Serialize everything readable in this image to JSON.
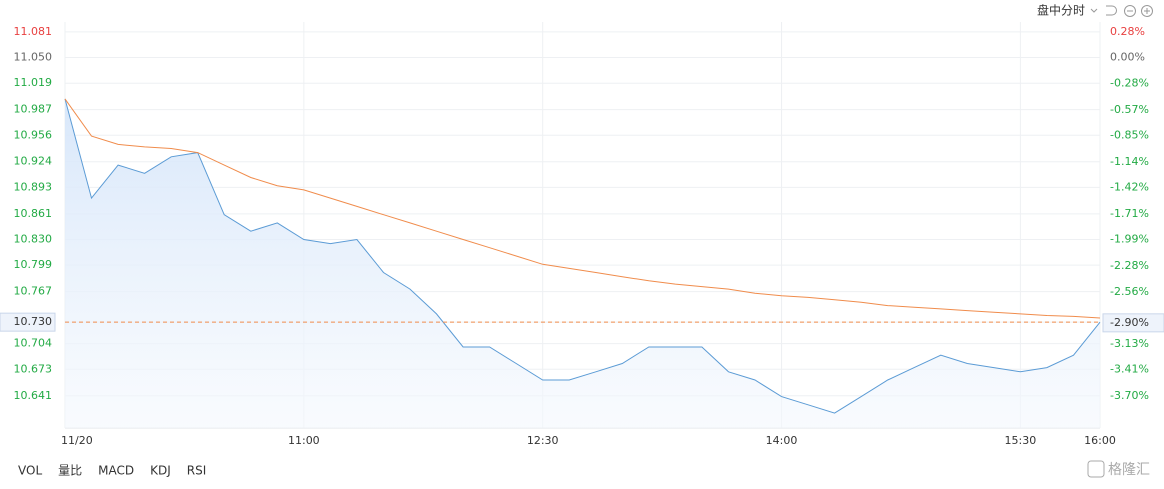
{
  "chart_data": {
    "type": "line",
    "x": [
      "09:30",
      "09:40",
      "09:50",
      "10:00",
      "10:10",
      "10:20",
      "10:30",
      "10:40",
      "10:50",
      "11:00",
      "11:10",
      "11:20",
      "11:30",
      "11:40",
      "11:50",
      "12:00",
      "12:10",
      "12:20",
      "12:30",
      "12:40",
      "12:50",
      "13:00",
      "13:10",
      "13:20",
      "13:30",
      "13:40",
      "13:50",
      "14:00",
      "14:10",
      "14:20",
      "14:30",
      "14:40",
      "14:50",
      "15:00",
      "15:10",
      "15:20",
      "15:30",
      "15:40",
      "15:50",
      "16:00"
    ],
    "series": [
      {
        "name": "price",
        "color": "#5b9bd5",
        "values": [
          11.0,
          10.88,
          10.92,
          10.91,
          10.93,
          10.935,
          10.86,
          10.84,
          10.85,
          10.83,
          10.825,
          10.83,
          10.79,
          10.77,
          10.74,
          10.7,
          10.7,
          10.68,
          10.66,
          10.66,
          10.67,
          10.68,
          10.7,
          10.7,
          10.7,
          10.67,
          10.66,
          10.64,
          10.63,
          10.62,
          10.64,
          10.66,
          10.675,
          10.69,
          10.68,
          10.675,
          10.67,
          10.675,
          10.69,
          10.73
        ]
      },
      {
        "name": "average",
        "color": "#f08c4c",
        "values": [
          11.0,
          10.955,
          10.945,
          10.942,
          10.94,
          10.935,
          10.92,
          10.905,
          10.895,
          10.89,
          10.88,
          10.87,
          10.86,
          10.85,
          10.84,
          10.83,
          10.82,
          10.81,
          10.8,
          10.795,
          10.79,
          10.785,
          10.78,
          10.776,
          10.773,
          10.77,
          10.765,
          10.762,
          10.76,
          10.757,
          10.754,
          10.75,
          10.748,
          10.746,
          10.744,
          10.742,
          10.74,
          10.738,
          10.737,
          10.735
        ]
      }
    ],
    "xlim": [
      "09:30",
      "16:00"
    ],
    "xticks": [
      {
        "value": "09:30",
        "label": "11/20"
      },
      "11:00",
      "12:30",
      "14:00",
      "15:30",
      "16:00"
    ],
    "ylim": [
      10.602,
      11.093
    ],
    "yticks": [
      11.081,
      {
        "value": 11.05,
        "label": "11.050"
      },
      11.019,
      10.987,
      10.956,
      10.924,
      10.893,
      10.861,
      {
        "value": 10.83,
        "label": "10.830"
      },
      10.799,
      10.767,
      {
        "value": 10.73,
        "label": "10.730"
      },
      10.704,
      10.673,
      10.641
    ],
    "y2lim": [
      -4.05,
      0.39
    ],
    "y2ticks": [
      {
        "value": 0.28,
        "label": "0.28%"
      },
      {
        "value": 0,
        "label": "0.00%"
      },
      {
        "value": -0.28,
        "label": "-0.28%"
      },
      {
        "value": -0.57,
        "label": "-0.57%"
      },
      {
        "value": -0.85,
        "label": "-0.85%"
      },
      {
        "value": -1.14,
        "label": "-1.14%"
      },
      {
        "value": -1.42,
        "label": "-1.42%"
      },
      {
        "value": -1.71,
        "label": "-1.71%"
      },
      {
        "value": -1.99,
        "label": "-1.99%"
      },
      {
        "value": -2.28,
        "label": "-2.28%"
      },
      {
        "value": -2.56,
        "label": "-2.56%"
      },
      {
        "value": -2.9,
        "label": "-2.90%"
      },
      {
        "value": -3.13,
        "label": "-3.13%"
      },
      {
        "value": -3.41,
        "label": "-3.41%"
      },
      {
        "value": -3.7,
        "label": "-3.70%"
      }
    ],
    "grid": true
  },
  "controls": {
    "mode": "盘中分时"
  },
  "indicators": [
    "VOL",
    "量比",
    "MACD",
    "KDJ",
    "RSI"
  ],
  "watermark": "格隆汇"
}
